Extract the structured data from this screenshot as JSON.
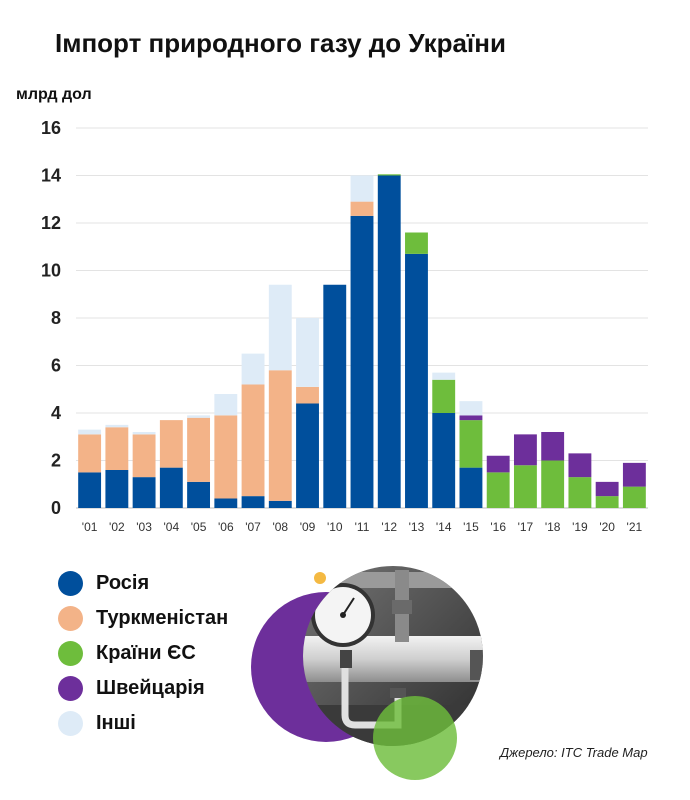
{
  "chart_data": {
    "type": "bar",
    "stacked": true,
    "title": "Імпорт природного газу до України",
    "ylabel": "млрд дол",
    "xlabel": "",
    "ylim": [
      0,
      16
    ],
    "yticks": [
      "0",
      "2",
      "4",
      "6",
      "8",
      "10",
      "12",
      "14",
      "16"
    ],
    "grid": true,
    "legend_position": "bottom-left",
    "categories": [
      "'01",
      "'02",
      "'03",
      "'04",
      "'05",
      "'06",
      "'07",
      "'08",
      "'09",
      "'10",
      "'11",
      "'12",
      "'13",
      "'14",
      "'15",
      "'16",
      "'17",
      "'18",
      "'19",
      "'20",
      "'21"
    ],
    "series": [
      {
        "name": "Росія",
        "color": "#004f9c",
        "values": [
          1.5,
          1.6,
          1.3,
          1.7,
          1.1,
          0.4,
          0.5,
          0.3,
          4.4,
          9.4,
          12.3,
          14.0,
          10.7,
          4.0,
          1.7,
          0,
          0,
          0,
          0,
          0,
          0
        ]
      },
      {
        "name": "Туркменістан",
        "color": "#f3b388",
        "values": [
          1.6,
          1.8,
          1.8,
          2.0,
          2.7,
          3.5,
          4.7,
          5.5,
          0.7,
          0,
          0.6,
          0,
          0,
          0,
          0,
          0,
          0,
          0,
          0,
          0,
          0
        ]
      },
      {
        "name": "Країни ЄС",
        "color": "#6ebd3c",
        "values": [
          0,
          0,
          0,
          0,
          0,
          0,
          0,
          0,
          0,
          0,
          0,
          0.05,
          0.9,
          1.4,
          2.0,
          1.5,
          1.8,
          2.0,
          1.3,
          0.5,
          0.9
        ]
      },
      {
        "name": "Швейцарія",
        "color": "#6d2f9b",
        "values": [
          0,
          0,
          0,
          0,
          0,
          0,
          0,
          0,
          0,
          0,
          0,
          0,
          0,
          0,
          0.2,
          0.7,
          1.3,
          1.2,
          1.0,
          0.6,
          1.0
        ]
      },
      {
        "name": "Інші",
        "color": "#deebf7",
        "values": [
          0.2,
          0.1,
          0.1,
          0,
          0.1,
          0.9,
          1.3,
          3.6,
          2.9,
          0,
          1.1,
          0,
          0,
          0.3,
          0.6,
          0,
          0,
          0,
          0,
          0,
          0
        ]
      }
    ]
  },
  "source": "Джерело: ITC Trade Map",
  "photo": {
    "icon": "pressure-gauge-photo",
    "accent_colors": [
      "#6d2f9b",
      "#6ebd3c",
      "#f3b388"
    ]
  }
}
